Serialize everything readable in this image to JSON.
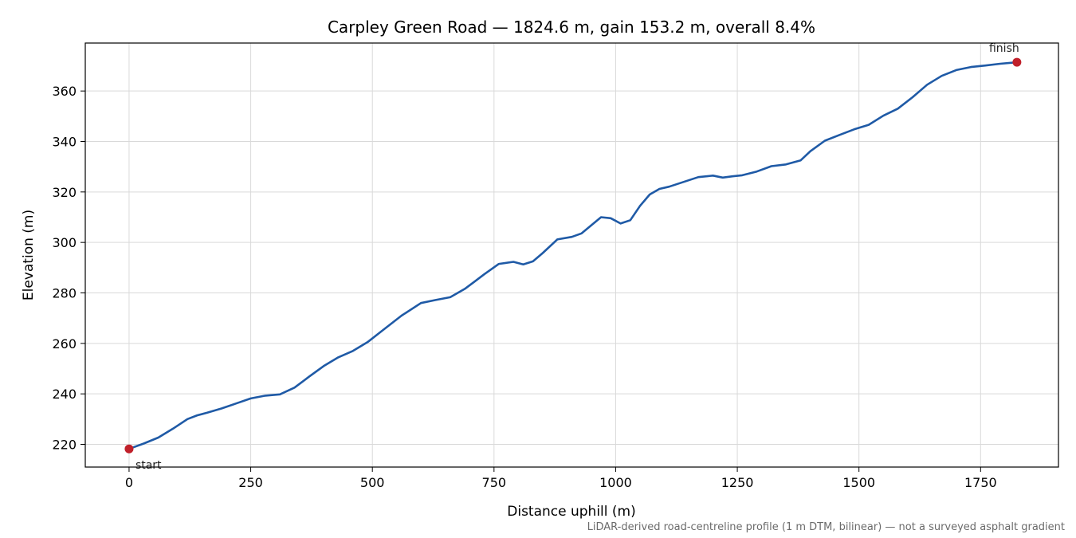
{
  "chart_data": {
    "type": "line",
    "title": "Carpley Green Road — 1824.6 m, gain 153.2 m, overall 8.4%",
    "xlabel": "Distance uphill (m)",
    "ylabel": "Elevation (m)",
    "note": "LiDAR-derived road-centreline profile (1 m DTM, bilinear) — not a surveyed asphalt gradient",
    "xlim": [
      -90,
      1910
    ],
    "ylim": [
      211,
      379
    ],
    "xticks": [
      0,
      250,
      500,
      750,
      1000,
      1250,
      1500,
      1750
    ],
    "yticks": [
      220,
      240,
      260,
      280,
      300,
      320,
      340,
      360
    ],
    "grid": true,
    "line_color": "#1f5aa6",
    "marker_color": "#c0202a",
    "series": [
      {
        "x": [
          0,
          30,
          60,
          90,
          120,
          140,
          160,
          190,
          220,
          250,
          280,
          310,
          340,
          370,
          400,
          430,
          460,
          490,
          520,
          560,
          600,
          630,
          660,
          690,
          710,
          730,
          760,
          790,
          810,
          830,
          850,
          880,
          910,
          930,
          950,
          970,
          990,
          1010,
          1030,
          1050,
          1070,
          1090,
          1110,
          1140,
          1170,
          1200,
          1220,
          1240,
          1260,
          1290,
          1320,
          1350,
          1380,
          1400,
          1430,
          1460,
          1490,
          1520,
          1550,
          1580,
          1610,
          1640,
          1670,
          1700,
          1730,
          1760,
          1790,
          1824.6
        ],
        "y": [
          218.2,
          220.3,
          222.7,
          226.2,
          230,
          231.5,
          232.5,
          234.2,
          236.2,
          238.2,
          239.3,
          239.8,
          242.5,
          246.8,
          251.0,
          254.5,
          257.0,
          260.5,
          265.0,
          271.0,
          276.0,
          277.2,
          278.3,
          281.6,
          284.5,
          287.4,
          291.5,
          292.3,
          291.3,
          292.5,
          295.8,
          301.2,
          302.2,
          303.6,
          306.8,
          310.0,
          309.6,
          307.5,
          308.8,
          314.5,
          319.0,
          321.2,
          322.1,
          324.0,
          325.9,
          326.5,
          325.7,
          326.2,
          326.6,
          328.1,
          330.2,
          330.9,
          332.5,
          336.1,
          340.3,
          342.6,
          344.8,
          346.6,
          350.2,
          353.0,
          357.5,
          362.5,
          366.0,
          368.3,
          369.5,
          370.1,
          370.8,
          371.4
        ]
      }
    ],
    "annotations": [
      {
        "text": "start",
        "x": 0,
        "y": 218.2
      },
      {
        "text": "finish",
        "x": 1824.6,
        "y": 371.4
      }
    ]
  }
}
